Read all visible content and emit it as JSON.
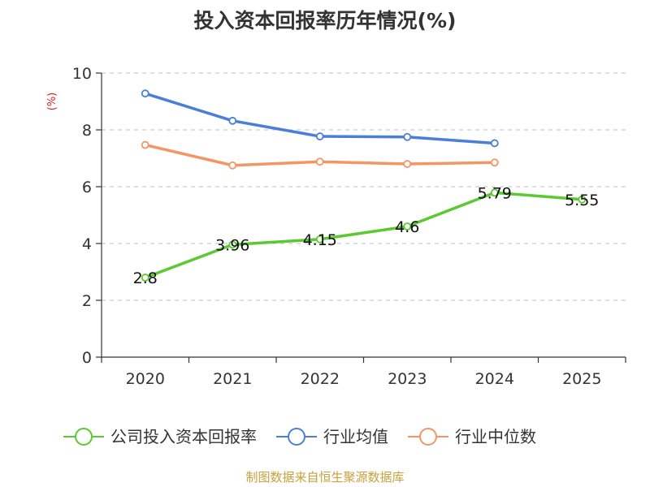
{
  "chart_data": {
    "type": "line",
    "title": "投入资本回报率历年情况(%)",
    "ylabel": "(%)",
    "ylim": [
      0,
      10
    ],
    "yticks": [
      0,
      2,
      4,
      6,
      8,
      10
    ],
    "categories": [
      "2020",
      "2021",
      "2022",
      "2023",
      "2024",
      "2025"
    ],
    "grid": true,
    "legend_position": "bottom",
    "series": [
      {
        "name": "公司投入资本回报率",
        "color": "#5cc930",
        "values": [
          2.8,
          3.96,
          4.15,
          4.6,
          5.79,
          5.55
        ],
        "labels": [
          "2.8",
          "3.96",
          "4.15",
          "4.6",
          "5.79",
          "5.55"
        ]
      },
      {
        "name": "行业均值",
        "color": "#4a7fd9",
        "values": [
          9.28,
          8.32,
          7.77,
          7.75,
          7.53,
          null
        ]
      },
      {
        "name": "行业中位数",
        "color": "#f59563",
        "values": [
          7.47,
          6.75,
          6.88,
          6.8,
          6.85,
          null
        ]
      }
    ]
  },
  "source": "制图数据来自恒生聚源数据库",
  "colors": {
    "ylabel": "#e02020",
    "grid": "#cccccc",
    "axis": "#333333"
  }
}
